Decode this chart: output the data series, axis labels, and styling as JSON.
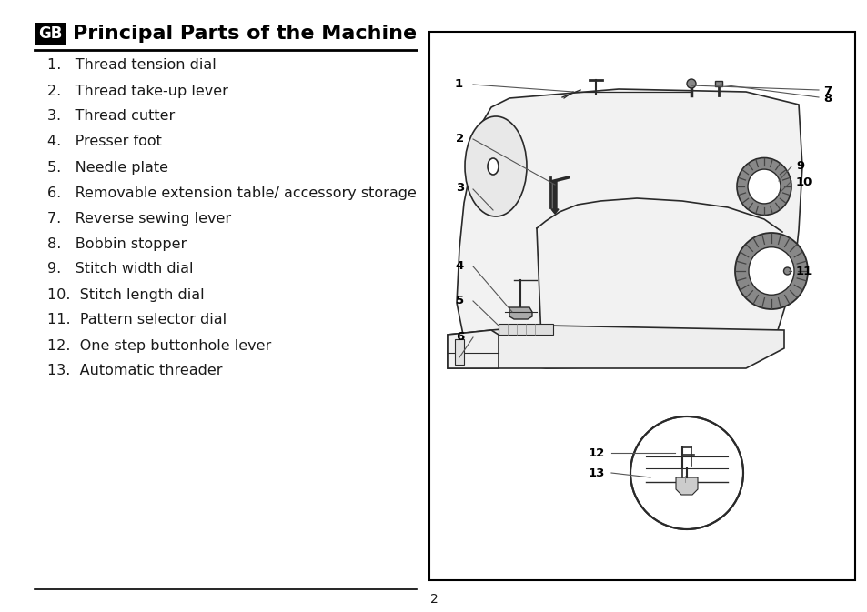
{
  "title": "Principal Parts of the Machine",
  "gb_label": "GB",
  "items": [
    "1.   Thread tension dial",
    "2.   Thread take-up lever",
    "3.   Thread cutter",
    "4.   Presser foot",
    "5.   Needle plate",
    "6.   Removable extension table/ accessory storage",
    "7.   Reverse sewing lever",
    "8.   Bobbin stopper",
    "9.   Stitch width dial",
    "10.  Stitch length dial",
    "11.  Pattern selector dial",
    "12.  One step buttonhole lever",
    "13.  Automatic threader"
  ],
  "page_number": "2",
  "bg_color": "#ffffff",
  "text_color": "#1a1a1a",
  "title_color": "#000000",
  "gb_bg": "#000000",
  "gb_text": "#ffffff",
  "line_color": "#000000",
  "diagram_border_color": "#000000",
  "title_fontsize": 16,
  "item_fontsize": 11.5,
  "gb_fontsize": 12
}
